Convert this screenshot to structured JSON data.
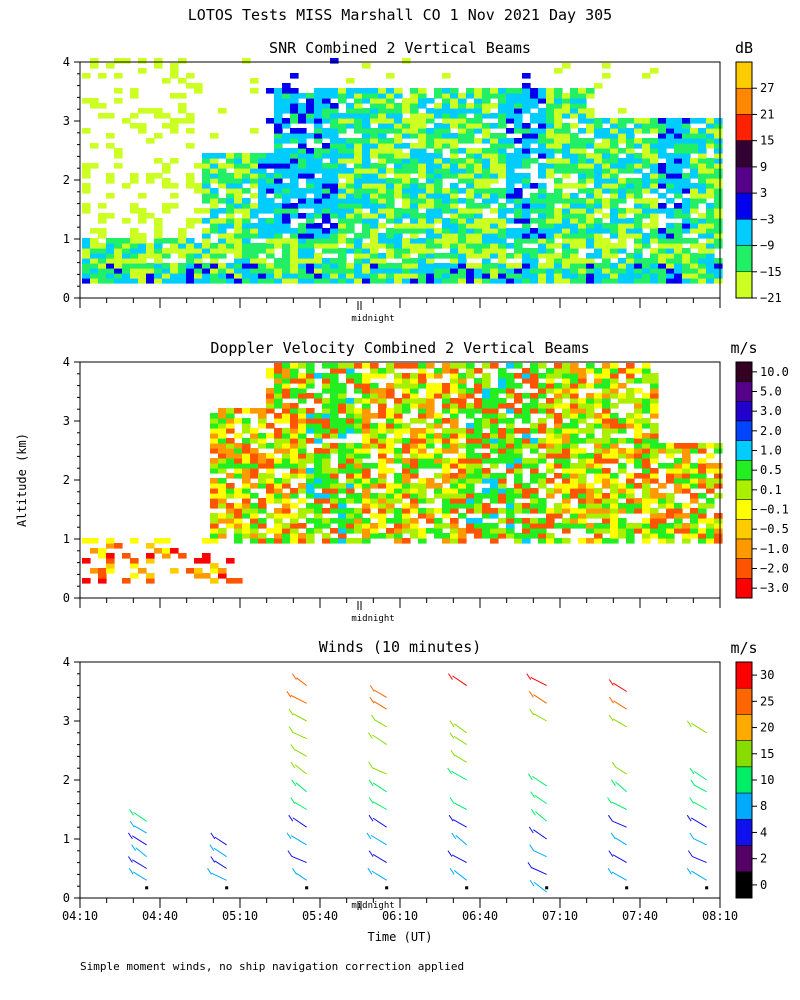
{
  "title": "LOTOS Tests MISS Marshall CO   1 Nov 2021 Day 305",
  "footnote": "Simple moment winds, no ship navigation correction applied",
  "chart_data": [
    {
      "type": "heatmap",
      "title": "SNR Combined 2 Vertical Beams",
      "ylabel": "",
      "xlabel": "",
      "ylim": [
        0,
        4
      ],
      "y_ticks": [
        "0",
        "1",
        "2",
        "3",
        "4"
      ],
      "x_range_utc": [
        "04:10",
        "08:10"
      ],
      "midnight_marker": "midnight",
      "colorbar": {
        "unit": "dB",
        "labels": [
          "27",
          "21",
          "15",
          "9",
          "3",
          "−3",
          "−9",
          "−15",
          "−21"
        ],
        "colors": [
          "#ffcc00",
          "#ff8800",
          "#ff2200",
          "#330033",
          "#550088",
          "#0000ee",
          "#00ccff",
          "#22ee66",
          "#ccff22"
        ]
      }
    },
    {
      "type": "heatmap",
      "title": "Doppler Velocity Combined 2 Vertical Beams",
      "ylabel": "Altitude (km)",
      "xlabel": "",
      "ylim": [
        0,
        4
      ],
      "y_ticks": [
        "0",
        "1",
        "2",
        "3",
        "4"
      ],
      "x_range_utc": [
        "04:10",
        "08:10"
      ],
      "midnight_marker": "midnight",
      "colorbar": {
        "unit": "m/s",
        "labels": [
          "10.0",
          "5.0",
          "3.0",
          "2.0",
          "1.0",
          "0.5",
          "0.1",
          "−0.1",
          "−0.5",
          "−1.0",
          "−2.0",
          "−3.0"
        ],
        "colors": [
          "#330022",
          "#550088",
          "#2200cc",
          "#0044ff",
          "#00ccff",
          "#22ee22",
          "#aaee00",
          "#ffff00",
          "#ffcc00",
          "#ff9900",
          "#ff5500",
          "#ff0000"
        ]
      }
    },
    {
      "type": "scatter",
      "title": "Winds (10 minutes)",
      "ylabel": "",
      "xlabel": "Time (UT)",
      "ylim": [
        0,
        4
      ],
      "y_ticks": [
        "0",
        "1",
        "2",
        "3",
        "4"
      ],
      "x_ticks": [
        "04:10",
        "04:40",
        "05:10",
        "05:40",
        "06:10",
        "06:40",
        "07:10",
        "07:40",
        "08:10"
      ],
      "midnight_marker": "midnight",
      "colorbar": {
        "unit": "m/s",
        "labels": [
          "30",
          "25",
          "20",
          "15",
          "10",
          "8",
          "4",
          "2",
          "0"
        ],
        "colors": [
          "#ff0000",
          "#ff6600",
          "#ffaa00",
          "#88dd00",
          "#00ee66",
          "#00aaff",
          "#1111ee",
          "#550066",
          "#000000"
        ]
      },
      "profiles": [
        {
          "time": "04:35",
          "alt_km": [
            0.3,
            0.5,
            0.7,
            0.9,
            1.1,
            1.3
          ]
        },
        {
          "time": "05:05",
          "alt_km": [
            0.3,
            0.5,
            0.7,
            0.9
          ]
        },
        {
          "time": "05:35",
          "alt_km": [
            0.3,
            0.6,
            0.9,
            1.2,
            1.5,
            1.8,
            2.1,
            2.4,
            2.7,
            3.0,
            3.3,
            3.6
          ]
        },
        {
          "time": "06:05",
          "alt_km": [
            0.3,
            0.6,
            0.9,
            1.2,
            1.5,
            1.8,
            2.1,
            2.6,
            2.9,
            3.2,
            3.4
          ]
        },
        {
          "time": "06:35",
          "alt_km": [
            0.3,
            0.6,
            0.9,
            1.2,
            1.5,
            2.0,
            2.3,
            2.6,
            2.8,
            3.6
          ]
        },
        {
          "time": "07:05",
          "alt_km": [
            0.1,
            0.4,
            0.7,
            1.0,
            1.3,
            1.6,
            1.9,
            3.0,
            3.3,
            3.6
          ]
        },
        {
          "time": "07:35",
          "alt_km": [
            0.3,
            0.6,
            0.9,
            1.2,
            1.5,
            1.8,
            2.1,
            2.9,
            3.2,
            3.5
          ]
        },
        {
          "time": "08:05",
          "alt_km": [
            0.3,
            0.6,
            0.9,
            1.2,
            1.5,
            1.8,
            2.0,
            2.8
          ]
        }
      ]
    }
  ]
}
